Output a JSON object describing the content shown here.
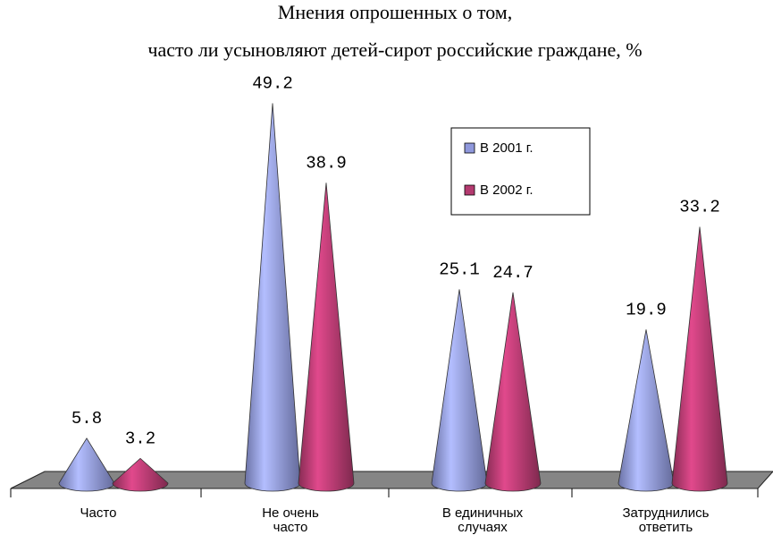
{
  "chart_data": {
    "type": "cone",
    "title": [
      "Мнения опрошенных о том,",
      "часто ли усыновляют детей-сирот российские граждане, %"
    ],
    "categories": [
      "Часто",
      "Не очень часто",
      "В единичных случаях",
      "Затруднились ответить"
    ],
    "series": [
      {
        "name": "В 2001 г.",
        "color": "#8f98dc",
        "values": [
          5.8,
          49.2,
          25.1,
          19.9
        ]
      },
      {
        "name": "В 2002 г.",
        "color": "#b43a70",
        "values": [
          3.2,
          38.9,
          24.7,
          33.2
        ]
      }
    ]
  }
}
